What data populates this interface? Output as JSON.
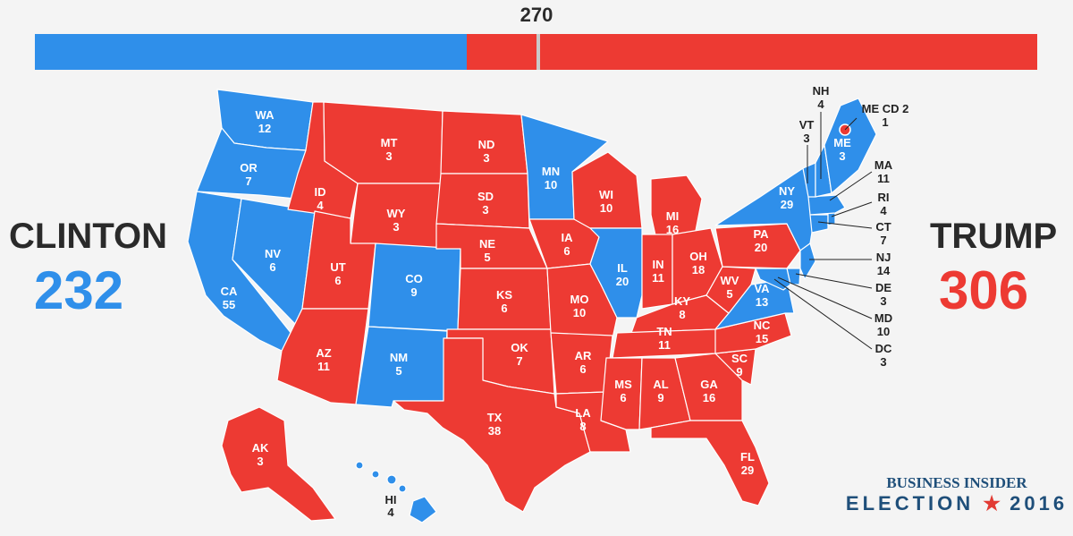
{
  "threshold": {
    "label": "270"
  },
  "colors": {
    "dem": "#2f8fea",
    "rep": "#ed3a33",
    "stateBorder": "#ffffff",
    "background": "#f4f4f4"
  },
  "candidates": {
    "clinton": {
      "name": "CLINTON",
      "votes": "232",
      "votes_num": 232
    },
    "trump": {
      "name": "TRUMP",
      "votes": "306",
      "votes_num": 306
    }
  },
  "states": {
    "WA": {
      "label": "WA",
      "votes": "12",
      "party": "dem"
    },
    "OR": {
      "label": "OR",
      "votes": "7",
      "party": "dem"
    },
    "CA": {
      "label": "CA",
      "votes": "55",
      "party": "dem"
    },
    "NV": {
      "label": "NV",
      "votes": "6",
      "party": "dem"
    },
    "ID": {
      "label": "ID",
      "votes": "4",
      "party": "rep"
    },
    "MT": {
      "label": "MT",
      "votes": "3",
      "party": "rep"
    },
    "WY": {
      "label": "WY",
      "votes": "3",
      "party": "rep"
    },
    "UT": {
      "label": "UT",
      "votes": "6",
      "party": "rep"
    },
    "AZ": {
      "label": "AZ",
      "votes": "11",
      "party": "rep"
    },
    "CO": {
      "label": "CO",
      "votes": "9",
      "party": "dem"
    },
    "NM": {
      "label": "NM",
      "votes": "5",
      "party": "dem"
    },
    "ND": {
      "label": "ND",
      "votes": "3",
      "party": "rep"
    },
    "SD": {
      "label": "SD",
      "votes": "3",
      "party": "rep"
    },
    "NE": {
      "label": "NE",
      "votes": "5",
      "party": "rep"
    },
    "KS": {
      "label": "KS",
      "votes": "6",
      "party": "rep"
    },
    "OK": {
      "label": "OK",
      "votes": "7",
      "party": "rep"
    },
    "TX": {
      "label": "TX",
      "votes": "38",
      "party": "rep"
    },
    "MN": {
      "label": "MN",
      "votes": "10",
      "party": "dem"
    },
    "IA": {
      "label": "IA",
      "votes": "6",
      "party": "rep"
    },
    "MO": {
      "label": "MO",
      "votes": "10",
      "party": "rep"
    },
    "AR": {
      "label": "AR",
      "votes": "6",
      "party": "rep"
    },
    "LA": {
      "label": "LA",
      "votes": "8",
      "party": "rep"
    },
    "WI": {
      "label": "WI",
      "votes": "10",
      "party": "rep"
    },
    "IL": {
      "label": "IL",
      "votes": "20",
      "party": "dem"
    },
    "MI": {
      "label": "MI",
      "votes": "16",
      "party": "rep"
    },
    "IN": {
      "label": "IN",
      "votes": "11",
      "party": "rep"
    },
    "OH": {
      "label": "OH",
      "votes": "18",
      "party": "rep"
    },
    "KY": {
      "label": "KY",
      "votes": "8",
      "party": "rep"
    },
    "TN": {
      "label": "TN",
      "votes": "11",
      "party": "rep"
    },
    "MS": {
      "label": "MS",
      "votes": "6",
      "party": "rep"
    },
    "AL": {
      "label": "AL",
      "votes": "9",
      "party": "rep"
    },
    "GA": {
      "label": "GA",
      "votes": "16",
      "party": "rep"
    },
    "FL": {
      "label": "FL",
      "votes": "29",
      "party": "rep"
    },
    "SC": {
      "label": "SC",
      "votes": "9",
      "party": "rep"
    },
    "NC": {
      "label": "NC",
      "votes": "15",
      "party": "rep"
    },
    "VA": {
      "label": "VA",
      "votes": "13",
      "party": "dem"
    },
    "WV": {
      "label": "WV",
      "votes": "5",
      "party": "rep"
    },
    "PA": {
      "label": "PA",
      "votes": "20",
      "party": "rep"
    },
    "NY": {
      "label": "NY",
      "votes": "29",
      "party": "dem"
    },
    "ME": {
      "label": "ME",
      "votes": "3",
      "party": "dem"
    },
    "AK": {
      "label": "AK",
      "votes": "3",
      "party": "rep"
    },
    "HI": {
      "label": "HI",
      "votes": "4",
      "party": "dem"
    },
    "NH": {
      "label": "NH",
      "votes": "4",
      "party": "dem"
    },
    "VT": {
      "label": "VT",
      "votes": "3",
      "party": "dem"
    },
    "MA": {
      "label": "MA",
      "votes": "11",
      "party": "dem"
    },
    "RI": {
      "label": "RI",
      "votes": "4",
      "party": "dem"
    },
    "CT": {
      "label": "CT",
      "votes": "7",
      "party": "dem"
    },
    "NJ": {
      "label": "NJ",
      "votes": "14",
      "party": "dem"
    },
    "DE": {
      "label": "DE",
      "votes": "3",
      "party": "dem"
    },
    "MD": {
      "label": "MD",
      "votes": "10",
      "party": "dem"
    },
    "DC": {
      "label": "DC",
      "votes": "3",
      "party": "dem"
    },
    "MECD2": {
      "label": "ME CD 2",
      "votes": "1",
      "party": "rep"
    }
  },
  "branding": {
    "publisher": "BUSINESS INSIDER",
    "event_word": "ELECTION",
    "star": "★",
    "year": "2016"
  }
}
